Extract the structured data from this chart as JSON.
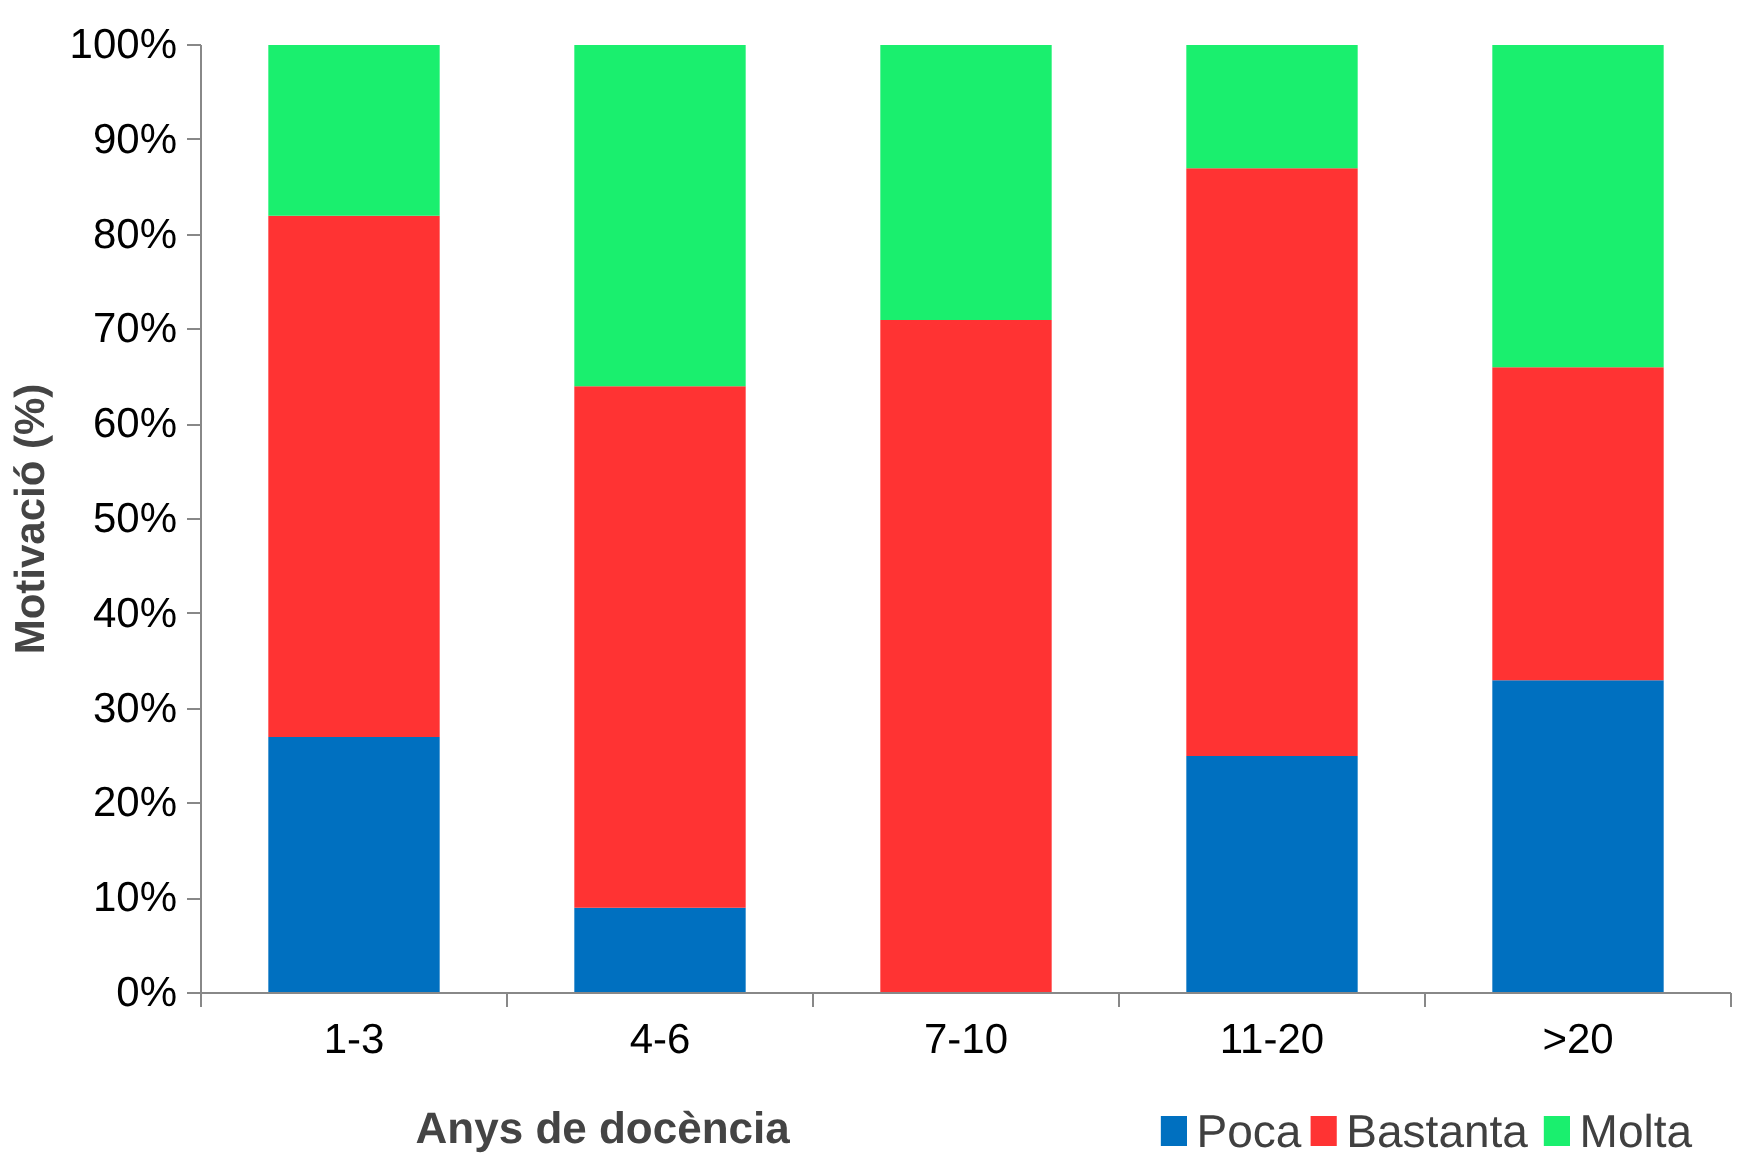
{
  "chart_data": {
    "type": "bar",
    "stacked": true,
    "xlabel": "Anys de docència",
    "ylabel": "Motivació (%)",
    "categories": [
      "1-3",
      "4-6",
      "7-10",
      "11-20",
      ">20"
    ],
    "series": [
      {
        "name": "Poca",
        "color": "#0070c0",
        "values": [
          27,
          9,
          0,
          25,
          33
        ]
      },
      {
        "name": "Bastanta",
        "color": "#ff3333",
        "values": [
          55,
          55,
          71,
          62,
          33
        ]
      },
      {
        "name": "Molta",
        "color": "#1aef6e",
        "values": [
          18,
          36,
          29,
          13,
          34
        ]
      }
    ],
    "ylim": [
      0,
      100
    ],
    "yticks": [
      {
        "value": 0,
        "label": "0%"
      },
      {
        "value": 10,
        "label": "10%"
      },
      {
        "value": 20,
        "label": "20%"
      },
      {
        "value": 30,
        "label": "30%"
      },
      {
        "value": 40,
        "label": "40%"
      },
      {
        "value": 50,
        "label": "50%"
      },
      {
        "value": 60,
        "label": "60%"
      },
      {
        "value": 70,
        "label": "70%"
      },
      {
        "value": 80,
        "label": "80%"
      },
      {
        "value": 90,
        "label": "90%"
      },
      {
        "value": 100,
        "label": "100%"
      }
    ],
    "grid": false,
    "legend": "bottom right"
  }
}
